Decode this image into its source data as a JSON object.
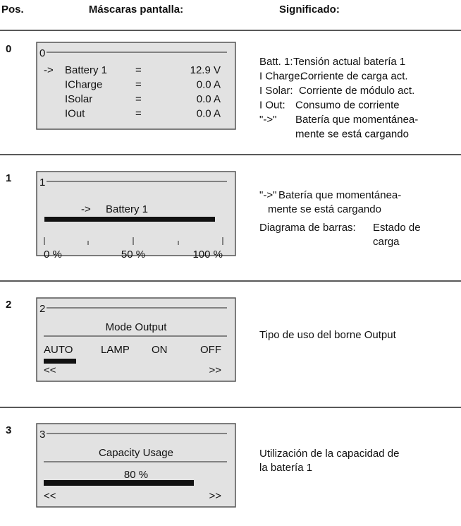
{
  "header": {
    "pos": "Pos.",
    "masks": "Máscaras pantalla:",
    "meaning": "Significado:"
  },
  "rows": [
    {
      "pos": "0",
      "screen": {
        "number": "0",
        "lines": [
          {
            "arrow": "->",
            "name": "Battery 1",
            "eq": "=",
            "value": "12.9 V"
          },
          {
            "name": "ICharge",
            "eq": "=",
            "value": "0.0 A"
          },
          {
            "name": "ISolar",
            "eq": "=",
            "value": "0.0 A"
          },
          {
            "name": "IOut",
            "eq": "=",
            "value": "0.0 A"
          }
        ]
      },
      "description": [
        {
          "label": "Batt. 1:",
          "text": [
            "Tensión actual batería 1"
          ]
        },
        {
          "label": "I Charge:",
          "text": [
            "Corriente de carga act."
          ]
        },
        {
          "label": "I Solar:",
          "text": [
            "Corriente de módulo act."
          ]
        },
        {
          "label": "I Out:",
          "text": [
            "Consumo de corriente"
          ]
        },
        {
          "label": "\"->\"",
          "text": [
            "Batería que momentánea-",
            "mente se está cargando"
          ]
        }
      ]
    },
    {
      "pos": "1",
      "screen": {
        "number": "1",
        "arrow": "->",
        "title": "Battery 1",
        "scale": [
          "0 %",
          "50 %",
          "100 %"
        ]
      },
      "description": [
        {
          "label": "\"->\"",
          "text": [
            "Batería que momentánea-",
            "mente se está cargando"
          ]
        },
        {
          "label": "Diagrama de barras:",
          "text": [
            "Estado de",
            "carga"
          ]
        }
      ]
    },
    {
      "pos": "2",
      "screen": {
        "number": "2",
        "title": "Mode Output",
        "options": [
          "AUTO",
          "LAMP",
          "ON",
          "OFF"
        ],
        "prev": "<<",
        "next": ">>"
      },
      "description": [
        {
          "text": [
            "Tipo de uso del borne Output"
          ]
        }
      ]
    },
    {
      "pos": "3",
      "screen": {
        "number": "3",
        "title": "Capacity Usage",
        "value": "80 %",
        "prev": "<<",
        "next": ">>"
      },
      "description": [
        {
          "text": [
            "Utilización de la capacidad de",
            "la batería 1"
          ]
        }
      ]
    }
  ]
}
